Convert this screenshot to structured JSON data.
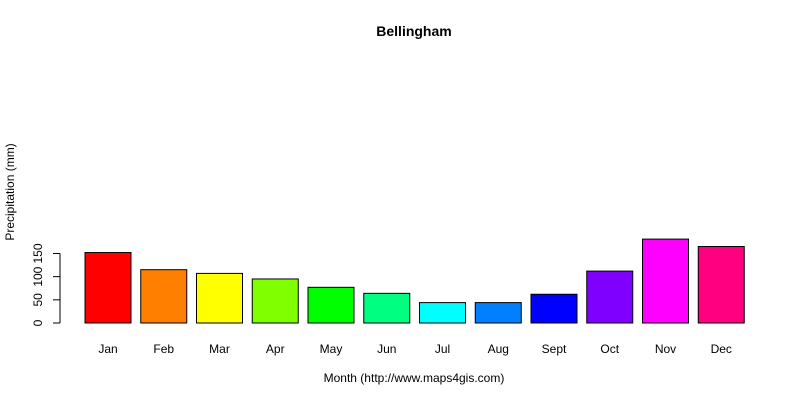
{
  "chart_data": {
    "type": "bar",
    "title": "Bellingham",
    "xlabel": "Month (http://www.maps4gis.com)",
    "ylabel": "Precipitation (mm)",
    "categories": [
      "Jan",
      "Feb",
      "Mar",
      "Apr",
      "May",
      "Jun",
      "Jul",
      "Aug",
      "Sept",
      "Oct",
      "Nov",
      "Dec"
    ],
    "values": [
      152,
      115,
      107,
      95,
      77,
      64,
      44,
      44,
      62,
      112,
      181,
      165
    ],
    "colors": [
      "#FF0000",
      "#FF8000",
      "#FFFF00",
      "#80FF00",
      "#00FF00",
      "#00FF80",
      "#00FFFF",
      "#0080FF",
      "#0000FF",
      "#8000FF",
      "#FF00FF",
      "#FF0080"
    ],
    "yticks": [
      0,
      50,
      100,
      150
    ],
    "ylim": [
      0,
      181
    ],
    "grid": false,
    "legend": "none"
  }
}
